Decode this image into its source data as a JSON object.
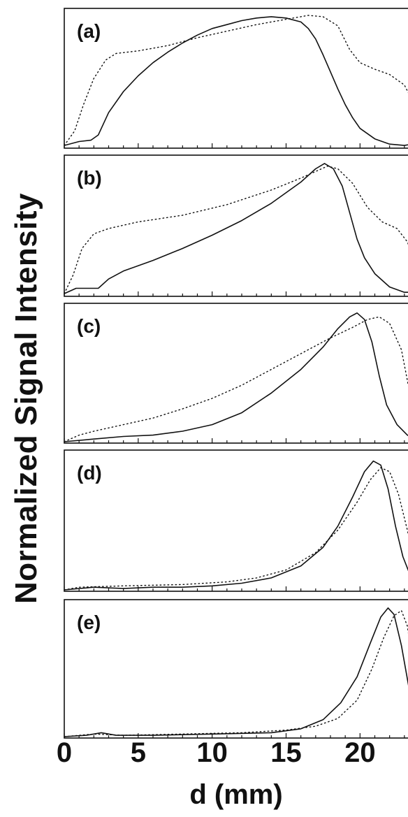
{
  "chart_data": {
    "type": "line",
    "ylabel": "Normalized Signal Intensity",
    "xlabel": "d (mm)",
    "x_tick_labels": [
      "0",
      "5",
      "10",
      "15",
      "20"
    ],
    "x_ticks": [
      0,
      5,
      10,
      15,
      20
    ],
    "xlim": [
      0,
      24
    ],
    "ylim": [
      0,
      1
    ],
    "grid": false,
    "legend": "none",
    "line_color": "#111111",
    "panels": [
      {
        "label": "(a)",
        "series": [
          {
            "style": "solid",
            "points": [
              [
                0,
                0.01
              ],
              [
                1,
                0.04
              ],
              [
                1.8,
                0.05
              ],
              [
                2.3,
                0.09
              ],
              [
                3,
                0.26
              ],
              [
                4,
                0.42
              ],
              [
                5,
                0.54
              ],
              [
                6,
                0.64
              ],
              [
                7,
                0.72
              ],
              [
                8,
                0.79
              ],
              [
                9,
                0.85
              ],
              [
                10,
                0.9
              ],
              [
                11,
                0.93
              ],
              [
                12,
                0.96
              ],
              [
                13,
                0.98
              ],
              [
                14,
                0.99
              ],
              [
                15,
                0.98
              ],
              [
                16,
                0.95
              ],
              [
                16.5,
                0.9
              ],
              [
                17,
                0.82
              ],
              [
                17.5,
                0.7
              ],
              [
                18,
                0.57
              ],
              [
                18.5,
                0.44
              ],
              [
                19,
                0.32
              ],
              [
                19.5,
                0.22
              ],
              [
                20,
                0.14
              ],
              [
                21,
                0.06
              ],
              [
                22,
                0.02
              ],
              [
                23,
                0.01
              ],
              [
                24,
                0.03
              ]
            ]
          },
          {
            "style": "dotted",
            "points": [
              [
                0,
                0.01
              ],
              [
                0.7,
                0.12
              ],
              [
                1.3,
                0.32
              ],
              [
                2,
                0.52
              ],
              [
                2.8,
                0.66
              ],
              [
                3.5,
                0.71
              ],
              [
                5,
                0.73
              ],
              [
                7,
                0.77
              ],
              [
                9,
                0.83
              ],
              [
                11,
                0.88
              ],
              [
                13,
                0.93
              ],
              [
                15,
                0.97
              ],
              [
                16.5,
                1.0
              ],
              [
                17.5,
                0.99
              ],
              [
                18.5,
                0.92
              ],
              [
                19.3,
                0.74
              ],
              [
                20,
                0.64
              ],
              [
                21,
                0.59
              ],
              [
                22,
                0.55
              ],
              [
                23,
                0.47
              ],
              [
                23.5,
                0.36
              ],
              [
                24,
                0.25
              ]
            ]
          }
        ]
      },
      {
        "label": "(b)",
        "series": [
          {
            "style": "solid",
            "points": [
              [
                0,
                0.01
              ],
              [
                0.8,
                0.05
              ],
              [
                1.5,
                0.05
              ],
              [
                2.3,
                0.05
              ],
              [
                3,
                0.12
              ],
              [
                4,
                0.18
              ],
              [
                6,
                0.26
              ],
              [
                8,
                0.35
              ],
              [
                10,
                0.45
              ],
              [
                12,
                0.56
              ],
              [
                14,
                0.69
              ],
              [
                16,
                0.85
              ],
              [
                17,
                0.95
              ],
              [
                17.6,
                0.99
              ],
              [
                18.2,
                0.95
              ],
              [
                18.8,
                0.82
              ],
              [
                19.3,
                0.62
              ],
              [
                19.8,
                0.42
              ],
              [
                20.3,
                0.28
              ],
              [
                21,
                0.16
              ],
              [
                22,
                0.06
              ],
              [
                23,
                0.02
              ],
              [
                24,
                0.02
              ]
            ]
          },
          {
            "style": "dotted",
            "points": [
              [
                0,
                0.01
              ],
              [
                0.6,
                0.15
              ],
              [
                1.2,
                0.35
              ],
              [
                2,
                0.46
              ],
              [
                3,
                0.5
              ],
              [
                5,
                0.55
              ],
              [
                8,
                0.6
              ],
              [
                11,
                0.68
              ],
              [
                14,
                0.79
              ],
              [
                16,
                0.88
              ],
              [
                17,
                0.93
              ],
              [
                17.8,
                0.97
              ],
              [
                18.5,
                0.95
              ],
              [
                19.5,
                0.84
              ],
              [
                20.5,
                0.66
              ],
              [
                21.5,
                0.55
              ],
              [
                22.5,
                0.5
              ],
              [
                23.2,
                0.4
              ],
              [
                23.8,
                0.22
              ],
              [
                24,
                0.14
              ]
            ]
          }
        ]
      },
      {
        "label": "(c)",
        "series": [
          {
            "style": "solid",
            "points": [
              [
                0,
                0.0
              ],
              [
                2,
                0.02
              ],
              [
                4,
                0.04
              ],
              [
                6,
                0.05
              ],
              [
                8,
                0.08
              ],
              [
                10,
                0.13
              ],
              [
                12,
                0.22
              ],
              [
                14,
                0.37
              ],
              [
                16,
                0.55
              ],
              [
                17.5,
                0.72
              ],
              [
                18.5,
                0.86
              ],
              [
                19.3,
                0.95
              ],
              [
                19.8,
                0.98
              ],
              [
                20.3,
                0.93
              ],
              [
                20.8,
                0.76
              ],
              [
                21.3,
                0.5
              ],
              [
                21.8,
                0.28
              ],
              [
                22.5,
                0.13
              ],
              [
                23.2,
                0.05
              ],
              [
                24,
                0.01
              ]
            ]
          },
          {
            "style": "dotted",
            "points": [
              [
                0,
                0.0
              ],
              [
                1,
                0.05
              ],
              [
                2,
                0.08
              ],
              [
                4,
                0.13
              ],
              [
                6,
                0.18
              ],
              [
                8,
                0.25
              ],
              [
                10,
                0.33
              ],
              [
                12,
                0.43
              ],
              [
                14,
                0.55
              ],
              [
                16,
                0.67
              ],
              [
                18,
                0.79
              ],
              [
                19.5,
                0.87
              ],
              [
                20.5,
                0.93
              ],
              [
                21.3,
                0.95
              ],
              [
                22,
                0.9
              ],
              [
                22.8,
                0.7
              ],
              [
                23.4,
                0.35
              ],
              [
                24,
                0.1
              ]
            ]
          }
        ]
      },
      {
        "label": "(d)",
        "series": [
          {
            "style": "solid",
            "points": [
              [
                0,
                0.0
              ],
              [
                2,
                0.02
              ],
              [
                4,
                0.01
              ],
              [
                6,
                0.02
              ],
              [
                8,
                0.02
              ],
              [
                10,
                0.03
              ],
              [
                12,
                0.05
              ],
              [
                14,
                0.09
              ],
              [
                16,
                0.18
              ],
              [
                17.5,
                0.32
              ],
              [
                18.5,
                0.48
              ],
              [
                19.5,
                0.7
              ],
              [
                20.3,
                0.89
              ],
              [
                20.9,
                0.97
              ],
              [
                21.4,
                0.94
              ],
              [
                21.9,
                0.76
              ],
              [
                22.4,
                0.48
              ],
              [
                22.9,
                0.25
              ],
              [
                23.5,
                0.08
              ],
              [
                24,
                0.02
              ]
            ]
          },
          {
            "style": "dotted",
            "points": [
              [
                0,
                0.0
              ],
              [
                1,
                0.02
              ],
              [
                4,
                0.03
              ],
              [
                8,
                0.04
              ],
              [
                11,
                0.06
              ],
              [
                13,
                0.09
              ],
              [
                15,
                0.15
              ],
              [
                17,
                0.28
              ],
              [
                18.5,
                0.45
              ],
              [
                19.8,
                0.66
              ],
              [
                20.7,
                0.83
              ],
              [
                21.4,
                0.92
              ],
              [
                22,
                0.89
              ],
              [
                22.6,
                0.72
              ],
              [
                23.2,
                0.45
              ],
              [
                23.7,
                0.2
              ],
              [
                24,
                0.1
              ]
            ]
          }
        ]
      },
      {
        "label": "(e)",
        "series": [
          {
            "style": "solid",
            "points": [
              [
                0,
                0.0
              ],
              [
                1.5,
                0.01
              ],
              [
                2.5,
                0.03
              ],
              [
                3.5,
                0.01
              ],
              [
                6,
                0.01
              ],
              [
                10,
                0.02
              ],
              [
                14,
                0.03
              ],
              [
                16,
                0.06
              ],
              [
                17.5,
                0.13
              ],
              [
                18.7,
                0.26
              ],
              [
                19.8,
                0.46
              ],
              [
                20.7,
                0.72
              ],
              [
                21.4,
                0.92
              ],
              [
                21.9,
                0.99
              ],
              [
                22.3,
                0.94
              ],
              [
                22.8,
                0.7
              ],
              [
                23.3,
                0.38
              ],
              [
                23.7,
                0.14
              ],
              [
                24,
                0.04
              ]
            ]
          },
          {
            "style": "dotted",
            "points": [
              [
                0,
                0.0
              ],
              [
                2,
                0.02
              ],
              [
                4,
                0.01
              ],
              [
                8,
                0.02
              ],
              [
                12,
                0.03
              ],
              [
                15,
                0.05
              ],
              [
                17,
                0.08
              ],
              [
                18.5,
                0.14
              ],
              [
                19.8,
                0.28
              ],
              [
                20.8,
                0.52
              ],
              [
                21.6,
                0.76
              ],
              [
                22.3,
                0.93
              ],
              [
                22.8,
                0.97
              ],
              [
                23.2,
                0.85
              ],
              [
                23.6,
                0.55
              ],
              [
                24,
                0.25
              ]
            ]
          }
        ]
      }
    ]
  }
}
